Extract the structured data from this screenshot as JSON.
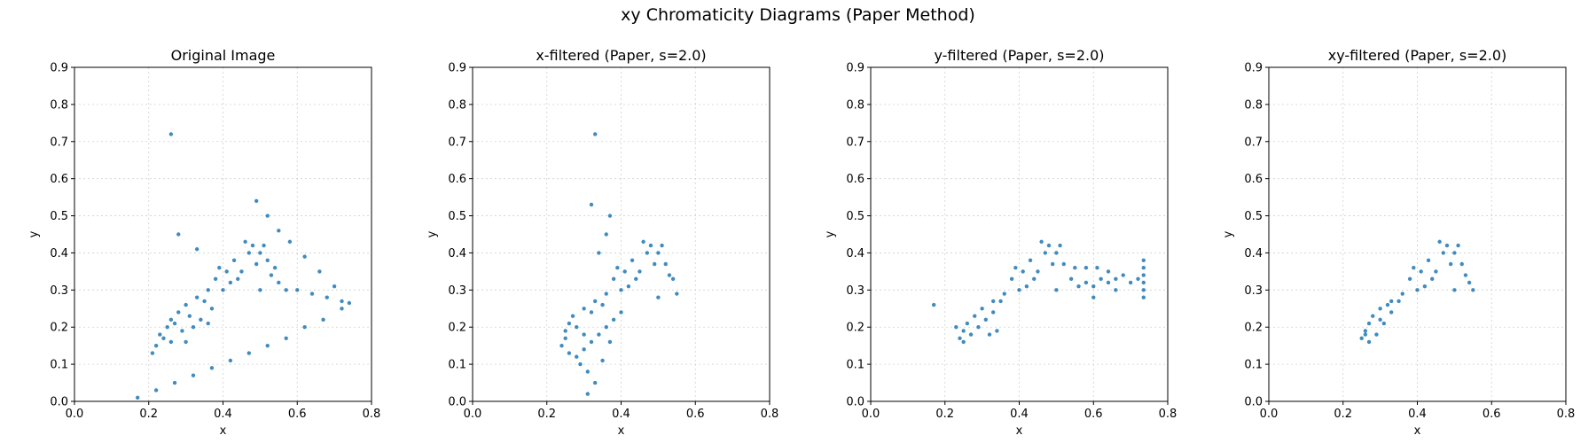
{
  "figure": {
    "title": "xy Chromaticity Diagrams (Paper Method)"
  },
  "colors": {
    "points": "#1f77b4",
    "grid": "#d0d0d0"
  },
  "chart_data": [
    {
      "type": "scatter",
      "title": "Original Image",
      "xlabel": "x",
      "ylabel": "y",
      "xlim": [
        0.0,
        0.8
      ],
      "ylim": [
        0.0,
        0.9
      ],
      "xticks": [
        "0.0",
        "0.2",
        "0.4",
        "0.6",
        "0.8"
      ],
      "yticks": [
        "0.0",
        "0.1",
        "0.2",
        "0.3",
        "0.4",
        "0.5",
        "0.6",
        "0.7",
        "0.8",
        "0.9"
      ],
      "grid": true,
      "series": [
        {
          "points": [
            [
              0.4,
              0.3
            ],
            [
              0.45,
              0.35
            ],
            [
              0.43,
              0.38
            ],
            [
              0.48,
              0.42
            ],
            [
              0.46,
              0.43
            ],
            [
              0.5,
              0.4
            ],
            [
              0.52,
              0.38
            ],
            [
              0.54,
              0.36
            ],
            [
              0.55,
              0.32
            ],
            [
              0.5,
              0.3
            ],
            [
              0.42,
              0.32
            ],
            [
              0.36,
              0.3
            ],
            [
              0.33,
              0.28
            ],
            [
              0.3,
              0.26
            ],
            [
              0.35,
              0.27
            ],
            [
              0.44,
              0.33
            ],
            [
              0.47,
              0.4
            ],
            [
              0.49,
              0.37
            ],
            [
              0.53,
              0.34
            ],
            [
              0.38,
              0.33
            ],
            [
              0.41,
              0.35
            ],
            [
              0.39,
              0.36
            ],
            [
              0.51,
              0.42
            ],
            [
              0.57,
              0.3
            ],
            [
              0.28,
              0.24
            ],
            [
              0.26,
              0.22
            ],
            [
              0.25,
              0.2
            ],
            [
              0.23,
              0.18
            ],
            [
              0.22,
              0.15
            ],
            [
              0.21,
              0.13
            ],
            [
              0.24,
              0.17
            ],
            [
              0.27,
              0.21
            ],
            [
              0.29,
              0.19
            ],
            [
              0.31,
              0.23
            ],
            [
              0.32,
              0.2
            ],
            [
              0.3,
              0.16
            ],
            [
              0.34,
              0.22
            ],
            [
              0.37,
              0.25
            ],
            [
              0.36,
              0.21
            ],
            [
              0.26,
              0.16
            ],
            [
              0.6,
              0.3
            ],
            [
              0.64,
              0.29
            ],
            [
              0.68,
              0.28
            ],
            [
              0.72,
              0.27
            ],
            [
              0.74,
              0.265
            ],
            [
              0.7,
              0.31
            ],
            [
              0.66,
              0.35
            ],
            [
              0.62,
              0.39
            ],
            [
              0.58,
              0.43
            ],
            [
              0.55,
              0.46
            ],
            [
              0.52,
              0.5
            ],
            [
              0.49,
              0.54
            ],
            [
              0.17,
              0.01
            ],
            [
              0.22,
              0.03
            ],
            [
              0.27,
              0.05
            ],
            [
              0.32,
              0.07
            ],
            [
              0.37,
              0.09
            ],
            [
              0.42,
              0.11
            ],
            [
              0.47,
              0.13
            ],
            [
              0.52,
              0.15
            ],
            [
              0.57,
              0.17
            ],
            [
              0.62,
              0.2
            ],
            [
              0.67,
              0.22
            ],
            [
              0.72,
              0.25
            ],
            [
              0.28,
              0.45
            ],
            [
              0.33,
              0.41
            ],
            [
              0.26,
              0.72
            ]
          ]
        }
      ]
    },
    {
      "type": "scatter",
      "title": "x-filtered (Paper, s=2.0)",
      "xlabel": "x",
      "ylabel": "y",
      "xlim": [
        0.0,
        0.8
      ],
      "ylim": [
        0.0,
        0.9
      ],
      "xticks": [
        "0.0",
        "0.2",
        "0.4",
        "0.6",
        "0.8"
      ],
      "yticks": [
        "0.0",
        "0.1",
        "0.2",
        "0.3",
        "0.4",
        "0.5",
        "0.6",
        "0.7",
        "0.8",
        "0.9"
      ],
      "grid": true,
      "series": [
        {
          "points": [
            [
              0.4,
              0.3
            ],
            [
              0.45,
              0.35
            ],
            [
              0.43,
              0.38
            ],
            [
              0.48,
              0.42
            ],
            [
              0.46,
              0.43
            ],
            [
              0.5,
              0.4
            ],
            [
              0.52,
              0.37
            ],
            [
              0.54,
              0.33
            ],
            [
              0.55,
              0.29
            ],
            [
              0.5,
              0.28
            ],
            [
              0.42,
              0.31
            ],
            [
              0.36,
              0.29
            ],
            [
              0.33,
              0.27
            ],
            [
              0.3,
              0.25
            ],
            [
              0.35,
              0.26
            ],
            [
              0.44,
              0.33
            ],
            [
              0.47,
              0.4
            ],
            [
              0.49,
              0.37
            ],
            [
              0.53,
              0.34
            ],
            [
              0.38,
              0.33
            ],
            [
              0.41,
              0.35
            ],
            [
              0.39,
              0.36
            ],
            [
              0.51,
              0.42
            ],
            [
              0.27,
              0.23
            ],
            [
              0.26,
              0.21
            ],
            [
              0.25,
              0.19
            ],
            [
              0.25,
              0.17
            ],
            [
              0.24,
              0.15
            ],
            [
              0.26,
              0.13
            ],
            [
              0.28,
              0.12
            ],
            [
              0.3,
              0.14
            ],
            [
              0.32,
              0.16
            ],
            [
              0.34,
              0.18
            ],
            [
              0.36,
              0.2
            ],
            [
              0.38,
              0.22
            ],
            [
              0.4,
              0.24
            ],
            [
              0.29,
              0.1
            ],
            [
              0.31,
              0.08
            ],
            [
              0.33,
              0.05
            ],
            [
              0.31,
              0.02
            ],
            [
              0.35,
              0.11
            ],
            [
              0.37,
              0.16
            ],
            [
              0.3,
              0.18
            ],
            [
              0.28,
              0.2
            ],
            [
              0.32,
              0.24
            ],
            [
              0.34,
              0.4
            ],
            [
              0.36,
              0.45
            ],
            [
              0.37,
              0.5
            ],
            [
              0.32,
              0.53
            ],
            [
              0.33,
              0.72
            ]
          ]
        }
      ]
    },
    {
      "type": "scatter",
      "title": "y-filtered (Paper, s=2.0)",
      "xlabel": "x",
      "ylabel": "y",
      "xlim": [
        0.0,
        0.8
      ],
      "ylim": [
        0.0,
        0.9
      ],
      "xticks": [
        "0.0",
        "0.2",
        "0.4",
        "0.6",
        "0.8"
      ],
      "yticks": [
        "0.0",
        "0.1",
        "0.2",
        "0.3",
        "0.4",
        "0.5",
        "0.6",
        "0.7",
        "0.8",
        "0.9"
      ],
      "grid": true,
      "series": [
        {
          "points": [
            [
              0.4,
              0.3
            ],
            [
              0.45,
              0.35
            ],
            [
              0.43,
              0.38
            ],
            [
              0.48,
              0.42
            ],
            [
              0.46,
              0.43
            ],
            [
              0.5,
              0.4
            ],
            [
              0.52,
              0.37
            ],
            [
              0.54,
              0.33
            ],
            [
              0.5,
              0.3
            ],
            [
              0.42,
              0.31
            ],
            [
              0.36,
              0.29
            ],
            [
              0.33,
              0.27
            ],
            [
              0.3,
              0.25
            ],
            [
              0.35,
              0.27
            ],
            [
              0.44,
              0.33
            ],
            [
              0.47,
              0.4
            ],
            [
              0.49,
              0.37
            ],
            [
              0.38,
              0.33
            ],
            [
              0.41,
              0.35
            ],
            [
              0.39,
              0.36
            ],
            [
              0.51,
              0.42
            ],
            [
              0.28,
              0.23
            ],
            [
              0.26,
              0.21
            ],
            [
              0.25,
              0.19
            ],
            [
              0.24,
              0.17
            ],
            [
              0.23,
              0.2
            ],
            [
              0.25,
              0.16
            ],
            [
              0.27,
              0.18
            ],
            [
              0.29,
              0.2
            ],
            [
              0.31,
              0.22
            ],
            [
              0.33,
              0.24
            ],
            [
              0.34,
              0.19
            ],
            [
              0.32,
              0.18
            ],
            [
              0.56,
              0.31
            ],
            [
              0.58,
              0.32
            ],
            [
              0.6,
              0.31
            ],
            [
              0.62,
              0.33
            ],
            [
              0.64,
              0.32
            ],
            [
              0.66,
              0.33
            ],
            [
              0.68,
              0.34
            ],
            [
              0.7,
              0.32
            ],
            [
              0.72,
              0.33
            ],
            [
              0.55,
              0.36
            ],
            [
              0.58,
              0.36
            ],
            [
              0.61,
              0.36
            ],
            [
              0.64,
              0.35
            ],
            [
              0.6,
              0.28
            ],
            [
              0.66,
              0.3
            ],
            [
              0.735,
              0.28
            ],
            [
              0.735,
              0.3
            ],
            [
              0.735,
              0.32
            ],
            [
              0.735,
              0.34
            ],
            [
              0.735,
              0.36
            ],
            [
              0.735,
              0.38
            ],
            [
              0.17,
              0.26
            ]
          ]
        }
      ]
    },
    {
      "type": "scatter",
      "title": "xy-filtered (Paper, s=2.0)",
      "xlabel": "x",
      "ylabel": "y",
      "xlim": [
        0.0,
        0.8
      ],
      "ylim": [
        0.0,
        0.9
      ],
      "xticks": [
        "0.0",
        "0.2",
        "0.4",
        "0.6",
        "0.8"
      ],
      "yticks": [
        "0.0",
        "0.1",
        "0.2",
        "0.3",
        "0.4",
        "0.5",
        "0.6",
        "0.7",
        "0.8",
        "0.9"
      ],
      "grid": true,
      "series": [
        {
          "points": [
            [
              0.4,
              0.3
            ],
            [
              0.45,
              0.35
            ],
            [
              0.43,
              0.38
            ],
            [
              0.48,
              0.42
            ],
            [
              0.46,
              0.43
            ],
            [
              0.5,
              0.4
            ],
            [
              0.52,
              0.37
            ],
            [
              0.54,
              0.32
            ],
            [
              0.55,
              0.3
            ],
            [
              0.5,
              0.3
            ],
            [
              0.42,
              0.31
            ],
            [
              0.36,
              0.29
            ],
            [
              0.33,
              0.27
            ],
            [
              0.3,
              0.25
            ],
            [
              0.35,
              0.27
            ],
            [
              0.44,
              0.33
            ],
            [
              0.47,
              0.4
            ],
            [
              0.49,
              0.37
            ],
            [
              0.53,
              0.34
            ],
            [
              0.38,
              0.33
            ],
            [
              0.41,
              0.35
            ],
            [
              0.39,
              0.36
            ],
            [
              0.51,
              0.42
            ],
            [
              0.28,
              0.23
            ],
            [
              0.27,
              0.21
            ],
            [
              0.26,
              0.19
            ],
            [
              0.25,
              0.17
            ],
            [
              0.27,
              0.16
            ],
            [
              0.29,
              0.18
            ],
            [
              0.31,
              0.21
            ],
            [
              0.33,
              0.24
            ],
            [
              0.26,
              0.18
            ],
            [
              0.3,
              0.22
            ],
            [
              0.32,
              0.26
            ]
          ]
        }
      ]
    }
  ]
}
